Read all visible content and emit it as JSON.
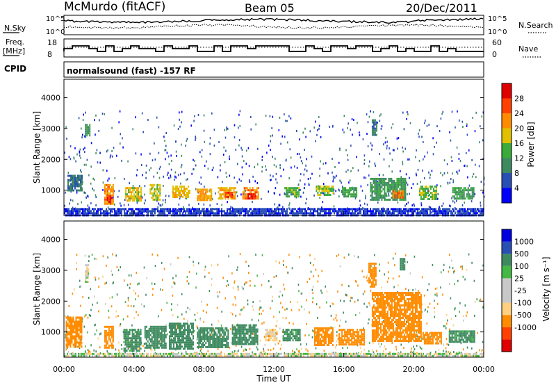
{
  "header": {
    "station": "McMurdo (fitACF)",
    "beam": "Beam 05",
    "date": "20/Dec/2011"
  },
  "noise_panel": {
    "left_label": "N.Sky",
    "right_label": "N.Search",
    "left_ticks": [
      "10^5",
      "10^0"
    ],
    "right_ticks": [
      "10^5",
      "10^0"
    ]
  },
  "freq_panel": {
    "left_label_line1": "Freq.",
    "left_label_line2": "[MHz]",
    "right_label": "Nave",
    "left_ticks": [
      "18",
      "8"
    ],
    "right_ticks": [
      "60",
      "0"
    ]
  },
  "cpid": {
    "label": "CPID",
    "text": "normalsound (fast) -157 RF"
  },
  "colors": {
    "power": [
      "#0000ff",
      "#2a4fb4",
      "#3e8a60",
      "#3aaa3a",
      "#e0c000",
      "#ff8c00",
      "#ff4000",
      "#e00000"
    ],
    "velocity": [
      "#e00000",
      "#ff4000",
      "#ff8c00",
      "#ffd080",
      "#c8c8c8",
      "#c8c8c8",
      "#44b844",
      "#3e8a60",
      "#2a4fb4",
      "#0000e0"
    ]
  },
  "chart_data": [
    {
      "type": "heatmap",
      "name": "power",
      "xlabel": "",
      "ylabel": "Slant Range [km]",
      "xlim": [
        0,
        24
      ],
      "ylim": [
        180,
        4600
      ],
      "yticks": [
        "1000",
        "2000",
        "3000",
        "4000"
      ],
      "colorbar_label": "Power [dB]",
      "colorbar_ticks": [
        "4",
        "8",
        "12",
        "16",
        "20",
        "24",
        "28"
      ],
      "regions": [
        {
          "t0": 0.0,
          "t1": 24.0,
          "r0": 200,
          "r1": 420,
          "value": 5
        },
        {
          "t0": 0.2,
          "t1": 1.0,
          "r0": 1000,
          "r1": 1500,
          "value": 9
        },
        {
          "t0": 1.2,
          "t1": 1.5,
          "r0": 2750,
          "r1": 3150,
          "value": 11
        },
        {
          "t0": 2.3,
          "t1": 2.8,
          "r0": 550,
          "r1": 1200,
          "value": 22
        },
        {
          "t0": 2.45,
          "t1": 2.7,
          "r0": 600,
          "r1": 850,
          "value": 29
        },
        {
          "t0": 3.5,
          "t1": 4.4,
          "r0": 650,
          "r1": 1100,
          "value": 18
        },
        {
          "t0": 4.9,
          "t1": 5.5,
          "r0": 700,
          "r1": 1200,
          "value": 17
        },
        {
          "t0": 6.2,
          "t1": 7.2,
          "r0": 750,
          "r1": 1150,
          "value": 19
        },
        {
          "t0": 7.6,
          "t1": 8.4,
          "r0": 700,
          "r1": 1050,
          "value": 21
        },
        {
          "t0": 8.8,
          "t1": 9.8,
          "r0": 700,
          "r1": 1100,
          "value": 20
        },
        {
          "t0": 9.2,
          "t1": 9.6,
          "r0": 800,
          "r1": 950,
          "value": 27
        },
        {
          "t0": 10.2,
          "t1": 11.1,
          "r0": 700,
          "r1": 1100,
          "value": 22
        },
        {
          "t0": 10.5,
          "t1": 10.9,
          "r0": 750,
          "r1": 900,
          "value": 28
        },
        {
          "t0": 12.6,
          "t1": 13.4,
          "r0": 800,
          "r1": 1100,
          "value": 14
        },
        {
          "t0": 14.4,
          "t1": 15.4,
          "r0": 850,
          "r1": 1150,
          "value": 16
        },
        {
          "t0": 15.9,
          "t1": 16.7,
          "r0": 800,
          "r1": 1100,
          "value": 13
        },
        {
          "t0": 17.5,
          "t1": 19.5,
          "r0": 700,
          "r1": 1400,
          "value": 11
        },
        {
          "t0": 17.6,
          "t1": 17.9,
          "r0": 2800,
          "r1": 3300,
          "value": 9
        },
        {
          "t0": 18.8,
          "t1": 19.4,
          "r0": 750,
          "r1": 1000,
          "value": 23
        },
        {
          "t0": 20.3,
          "t1": 21.3,
          "r0": 700,
          "r1": 1150,
          "value": 15
        },
        {
          "t0": 22.2,
          "t1": 23.4,
          "r0": 700,
          "r1": 1100,
          "value": 12
        }
      ]
    },
    {
      "type": "heatmap",
      "name": "velocity",
      "xlabel": "Time UT",
      "ylabel": "Slant Range [km]",
      "xlim": [
        0,
        24
      ],
      "ylim": [
        180,
        4600
      ],
      "xticks": [
        "00:00",
        "04:00",
        "08:00",
        "12:00",
        "16:00",
        "20:00",
        "00:00"
      ],
      "yticks": [
        "1000",
        "2000",
        "3000",
        "4000"
      ],
      "colorbar_label": "Velocity [m s⁻¹]",
      "colorbar_ticks": [
        "1000",
        "500",
        "100",
        "25",
        "-25",
        "-100",
        "-500",
        "-1000"
      ],
      "regions": [
        {
          "t0": 0.1,
          "t1": 1.0,
          "r0": 500,
          "r1": 1500,
          "value": -150
        },
        {
          "t0": 1.2,
          "t1": 1.4,
          "r0": 2600,
          "r1": 3200,
          "value": 0
        },
        {
          "t0": 2.3,
          "t1": 2.8,
          "r0": 500,
          "r1": 1200,
          "value": -200
        },
        {
          "t0": 3.4,
          "t1": 4.4,
          "r0": 400,
          "r1": 1100,
          "value": 150
        },
        {
          "t0": 4.6,
          "t1": 5.8,
          "r0": 500,
          "r1": 1200,
          "value": 250
        },
        {
          "t0": 6.0,
          "t1": 7.4,
          "r0": 450,
          "r1": 1300,
          "value": 300
        },
        {
          "t0": 7.6,
          "t1": 9.4,
          "r0": 500,
          "r1": 1150,
          "value": 300
        },
        {
          "t0": 9.6,
          "t1": 11.1,
          "r0": 600,
          "r1": 1250,
          "value": 200
        },
        {
          "t0": 11.5,
          "t1": 12.2,
          "r0": 700,
          "r1": 1100,
          "value": -60
        },
        {
          "t0": 12.5,
          "t1": 13.5,
          "r0": 700,
          "r1": 1100,
          "value": 150
        },
        {
          "t0": 14.3,
          "t1": 15.4,
          "r0": 600,
          "r1": 1150,
          "value": -200
        },
        {
          "t0": 15.7,
          "t1": 17.2,
          "r0": 600,
          "r1": 1100,
          "value": -250
        },
        {
          "t0": 17.4,
          "t1": 17.8,
          "r0": 2500,
          "r1": 3250,
          "value": -300
        },
        {
          "t0": 17.6,
          "t1": 20.4,
          "r0": 700,
          "r1": 2300,
          "value": -300
        },
        {
          "t0": 19.2,
          "t1": 19.5,
          "r0": 3000,
          "r1": 3400,
          "value": 300
        },
        {
          "t0": 20.5,
          "t1": 21.6,
          "r0": 600,
          "r1": 1000,
          "value": -200
        },
        {
          "t0": 22.0,
          "t1": 23.5,
          "r0": 700,
          "r1": 1050,
          "value": 150
        },
        {
          "t0": 0.0,
          "t1": 24.0,
          "r0": 200,
          "r1": 320,
          "value": 0
        }
      ]
    }
  ]
}
